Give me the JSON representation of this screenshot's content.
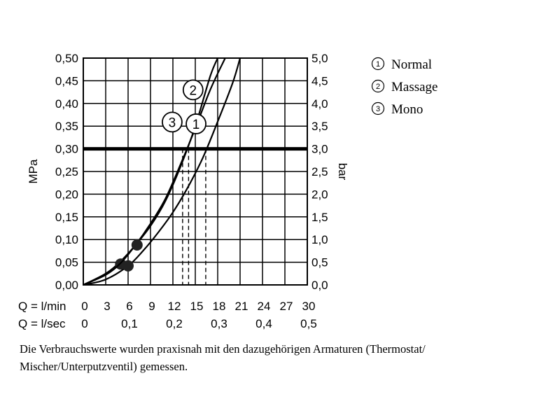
{
  "chart_data": {
    "type": "line",
    "y_left_label": "MPa",
    "y_right_label": "bar",
    "x_rows": [
      {
        "label": "Q = l/min",
        "ticks": [
          "0",
          "3",
          "6",
          "9",
          "12",
          "15",
          "18",
          "21",
          "24",
          "27",
          "30"
        ]
      },
      {
        "label": "Q = l/sec",
        "ticks": [
          "0",
          "0,1",
          "0,2",
          "0,3",
          "0,4",
          "0,5"
        ]
      }
    ],
    "y_left_ticks": [
      "0,00",
      "0,05",
      "0,10",
      "0,15",
      "0,20",
      "0,25",
      "0,30",
      "0,35",
      "0,40",
      "0,45",
      "0,50"
    ],
    "y_right_ticks": [
      "0,0",
      "0,5",
      "1,0",
      "1,5",
      "2,0",
      "2,5",
      "3,0",
      "3,5",
      "4,0",
      "4,5",
      "5,0"
    ],
    "xlim": [
      0,
      30
    ],
    "ylim": [
      0,
      0.5
    ],
    "grid": true,
    "reference_line": {
      "y": 0.3
    },
    "series": [
      {
        "name": "Normal",
        "marker": "1",
        "x": [
          0,
          3,
          6,
          8,
          10,
          12,
          14,
          16,
          18,
          20,
          21
        ],
        "y": [
          0,
          0.012,
          0.042,
          0.075,
          0.115,
          0.16,
          0.215,
          0.28,
          0.36,
          0.445,
          0.5
        ],
        "dot": [
          6,
          0.042
        ],
        "reference_flow": 16.4
      },
      {
        "name": "Massage",
        "marker": "2",
        "x": [
          0,
          3,
          5,
          7,
          9,
          11,
          13,
          15,
          17,
          18
        ],
        "y": [
          0,
          0.025,
          0.052,
          0.088,
          0.13,
          0.185,
          0.26,
          0.35,
          0.46,
          0.5
        ],
        "dot": [
          5,
          0.046
        ],
        "reference_flow": 13.3
      },
      {
        "name": "Mono",
        "marker": "3",
        "x": [
          0,
          3,
          5,
          7,
          9,
          11,
          13,
          15,
          17,
          19
        ],
        "y": [
          0,
          0.022,
          0.048,
          0.088,
          0.135,
          0.19,
          0.265,
          0.345,
          0.43,
          0.5
        ],
        "dot": [
          7.2,
          0.088
        ],
        "reference_flow": 14.1
      }
    ],
    "legend": [
      {
        "marker": "1",
        "label": "Normal"
      },
      {
        "marker": "2",
        "label": "Massage"
      },
      {
        "marker": "3",
        "label": "Mono"
      }
    ],
    "legend_position": "top-right"
  },
  "caption": "Die Verbrauchswerte wurden praxisnah mit den dazugehörigen Armaturen (Thermostat/ Mischer/Unterputzventil) gemessen."
}
